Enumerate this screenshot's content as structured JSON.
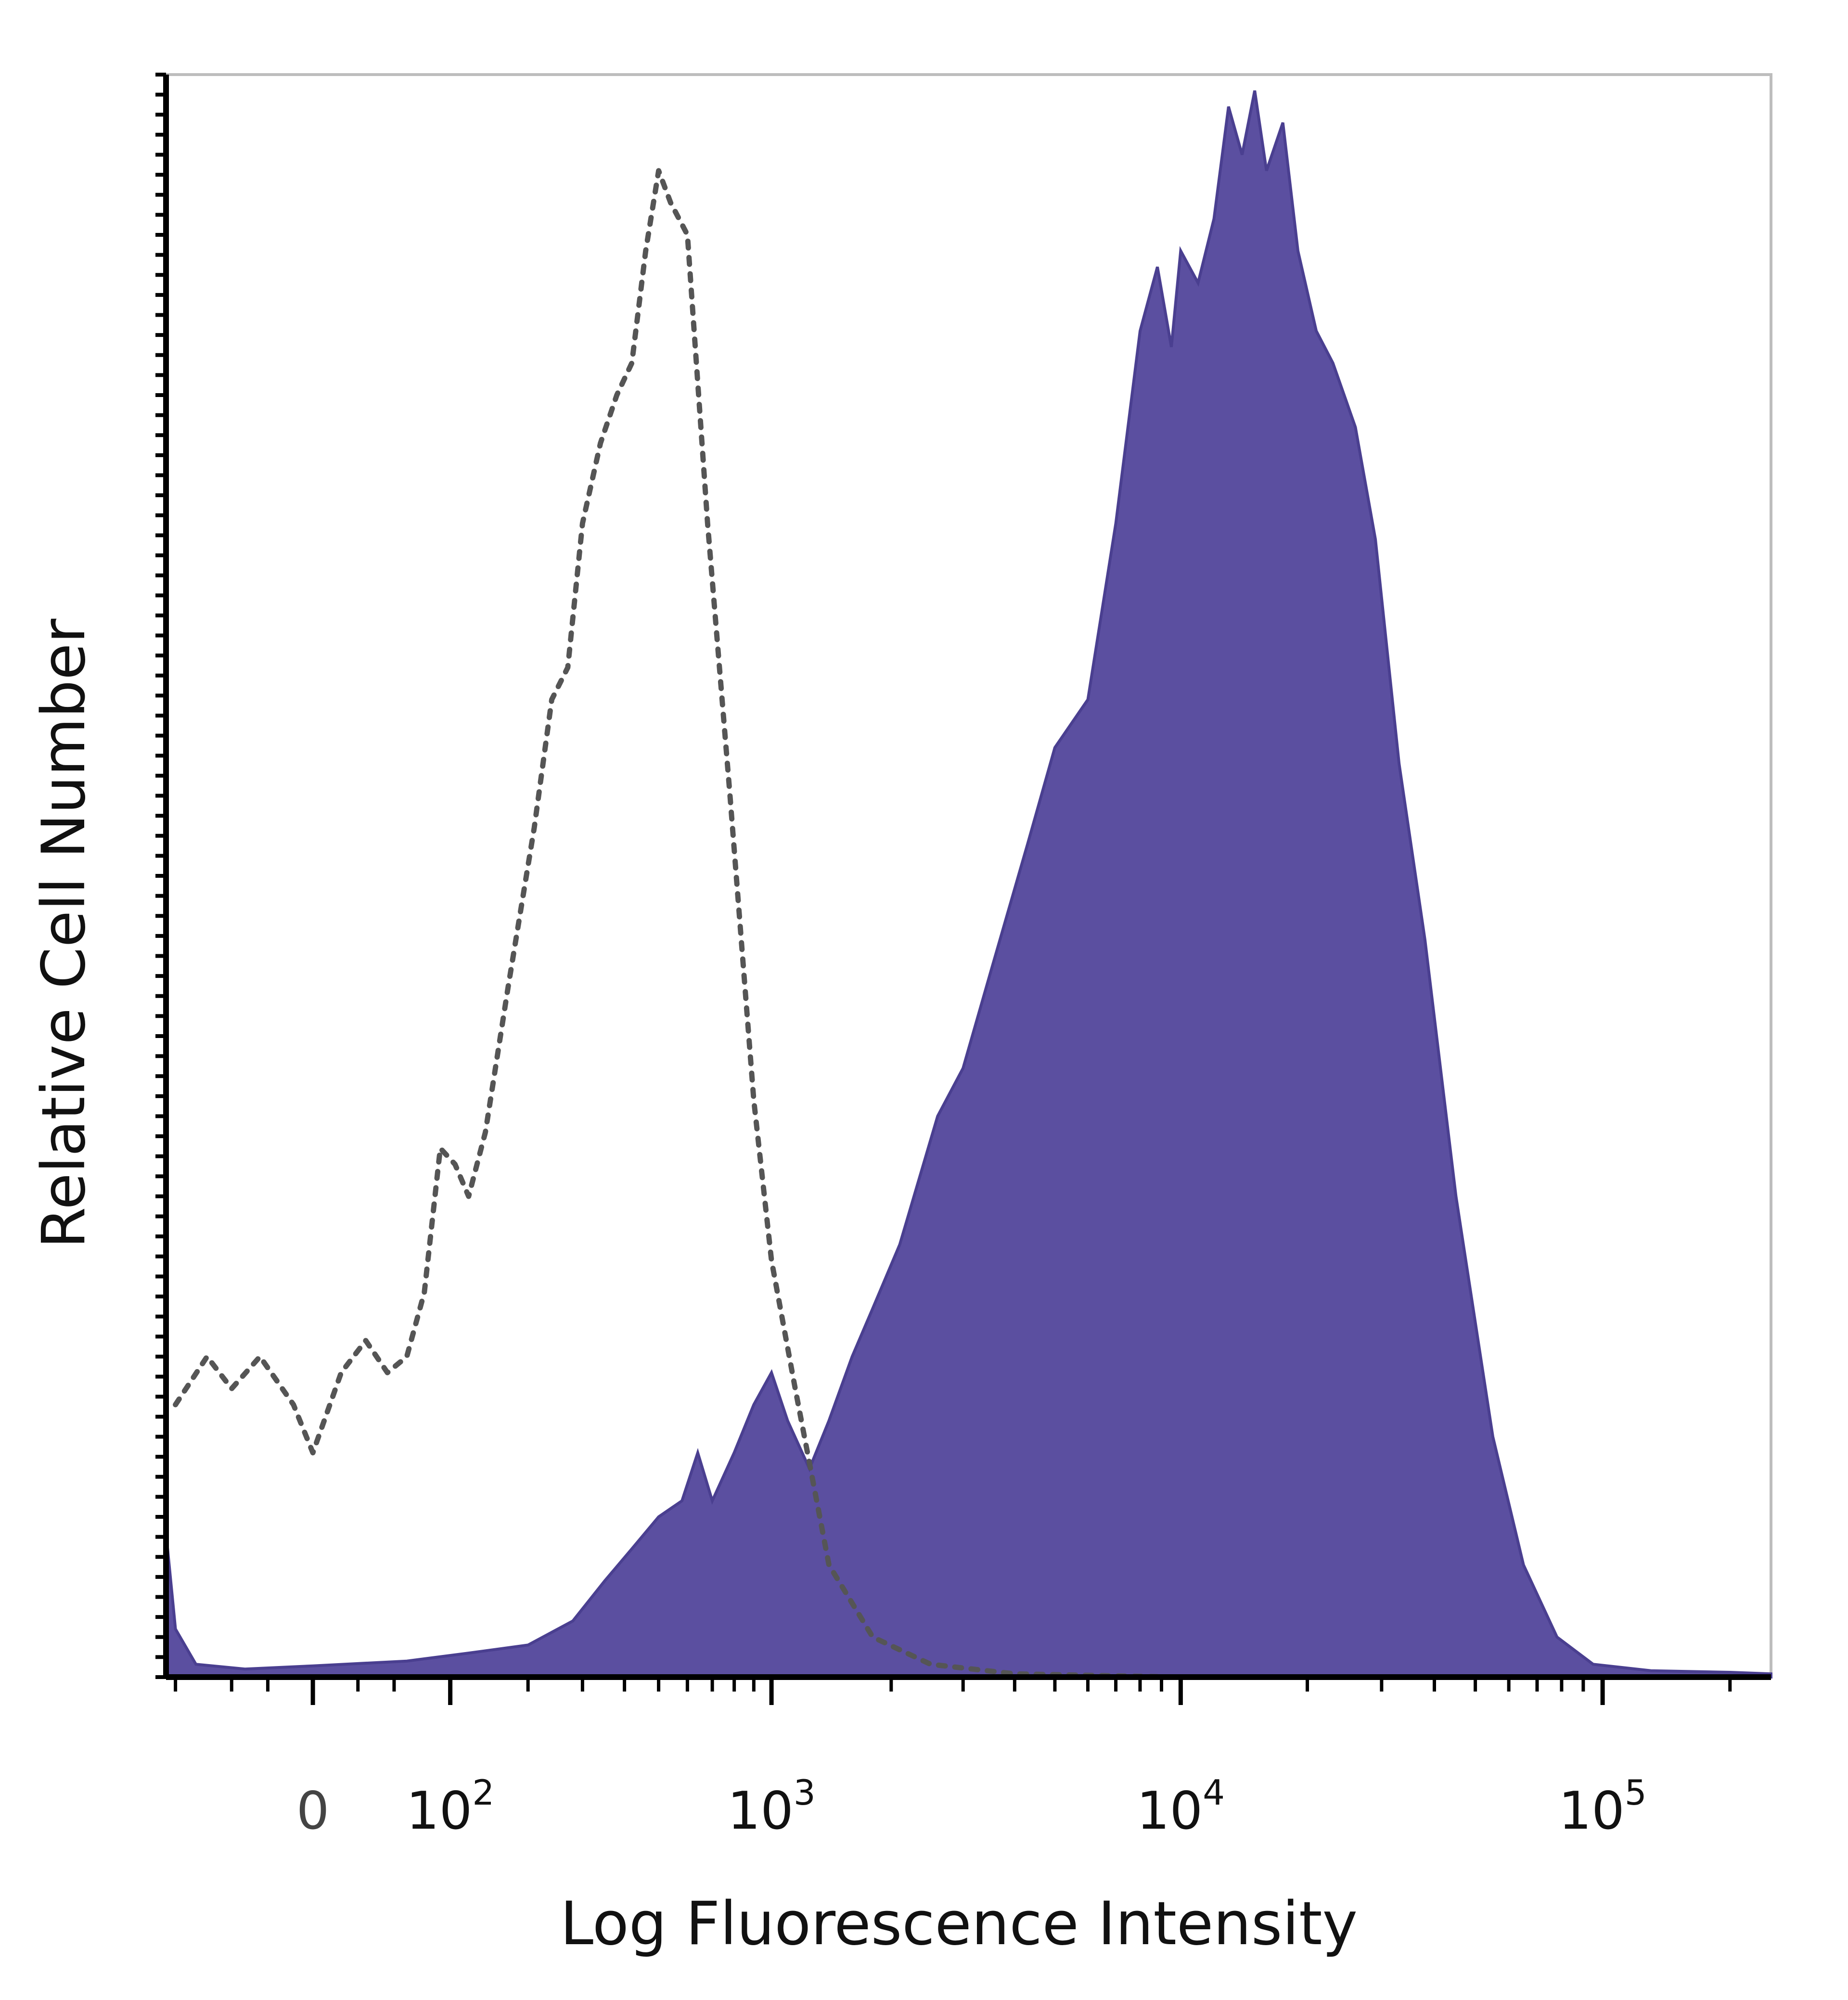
{
  "chart_data": {
    "type": "area",
    "title": "",
    "xlabel": "Log Fluorescence Intensity",
    "ylabel": "Relative Cell Number",
    "x_scale": "biexponential",
    "xlim": [
      -110,
      250000
    ],
    "ylim": [
      0,
      100
    ],
    "grid": false,
    "legend": "none",
    "x_ticks": [
      {
        "value": 0,
        "base": "0",
        "exp": ""
      },
      {
        "value": 100,
        "base": "10",
        "exp": "2"
      },
      {
        "value": 1000,
        "base": "10",
        "exp": "3"
      },
      {
        "value": 10000,
        "base": "10",
        "exp": "4"
      },
      {
        "value": 100000,
        "base": "10",
        "exp": "5"
      }
    ],
    "colors": {
      "filled": "#5b4fa0",
      "filled_edge": "#4a3f90",
      "dotted": "#555555",
      "axis": "#000000",
      "frame": "#bdbdbd"
    },
    "series": [
      {
        "style": "dotted",
        "points": [
          [
            -100,
            17
          ],
          [
            -70,
            20
          ],
          [
            -50,
            18
          ],
          [
            -30,
            20
          ],
          [
            -10,
            17
          ],
          [
            0,
            14
          ],
          [
            15,
            19
          ],
          [
            30,
            21
          ],
          [
            45,
            19
          ],
          [
            60,
            20
          ],
          [
            75,
            24
          ],
          [
            90,
            33
          ],
          [
            105,
            32
          ],
          [
            120,
            30
          ],
          [
            140,
            34
          ],
          [
            170,
            43
          ],
          [
            210,
            53
          ],
          [
            240,
            61
          ],
          [
            270,
            63
          ],
          [
            300,
            72
          ],
          [
            340,
            77
          ],
          [
            380,
            80
          ],
          [
            420,
            82
          ],
          [
            460,
            89
          ],
          [
            500,
            94
          ],
          [
            540,
            92
          ],
          [
            600,
            90
          ],
          [
            680,
            72
          ],
          [
            780,
            55
          ],
          [
            900,
            36
          ],
          [
            1000,
            26
          ],
          [
            1150,
            18
          ],
          [
            1400,
            7
          ],
          [
            1800,
            2.5
          ],
          [
            2500,
            0.8
          ],
          [
            4000,
            0.2
          ],
          [
            10000,
            0
          ]
        ]
      },
      {
        "style": "filled",
        "points": [
          [
            -110,
            9
          ],
          [
            -100,
            3
          ],
          [
            -80,
            0.8
          ],
          [
            -40,
            0.5
          ],
          [
            0,
            0.7
          ],
          [
            60,
            1
          ],
          [
            120,
            1.5
          ],
          [
            200,
            2
          ],
          [
            280,
            3.5
          ],
          [
            350,
            6
          ],
          [
            420,
            8
          ],
          [
            500,
            10
          ],
          [
            580,
            11
          ],
          [
            640,
            14
          ],
          [
            700,
            11
          ],
          [
            800,
            14
          ],
          [
            900,
            17
          ],
          [
            1000,
            19
          ],
          [
            1100,
            16
          ],
          [
            1250,
            13
          ],
          [
            1400,
            16
          ],
          [
            1600,
            20
          ],
          [
            1800,
            23
          ],
          [
            2100,
            27
          ],
          [
            2600,
            35
          ],
          [
            3000,
            38
          ],
          [
            3500,
            44
          ],
          [
            4300,
            52
          ],
          [
            5000,
            58
          ],
          [
            6000,
            61
          ],
          [
            7000,
            72
          ],
          [
            8000,
            84
          ],
          [
            8800,
            88
          ],
          [
            9500,
            83
          ],
          [
            10000,
            89
          ],
          [
            11000,
            87
          ],
          [
            12000,
            91
          ],
          [
            13000,
            98
          ],
          [
            14000,
            95
          ],
          [
            15000,
            99
          ],
          [
            16000,
            94
          ],
          [
            17500,
            97
          ],
          [
            19000,
            89
          ],
          [
            21000,
            84
          ],
          [
            23000,
            82
          ],
          [
            26000,
            78
          ],
          [
            29000,
            71
          ],
          [
            33000,
            57
          ],
          [
            38000,
            46
          ],
          [
            45000,
            30
          ],
          [
            55000,
            15
          ],
          [
            65000,
            7
          ],
          [
            78000,
            2.5
          ],
          [
            95000,
            0.8
          ],
          [
            130000,
            0.4
          ],
          [
            200000,
            0.3
          ],
          [
            250000,
            0.2
          ]
        ]
      }
    ]
  }
}
